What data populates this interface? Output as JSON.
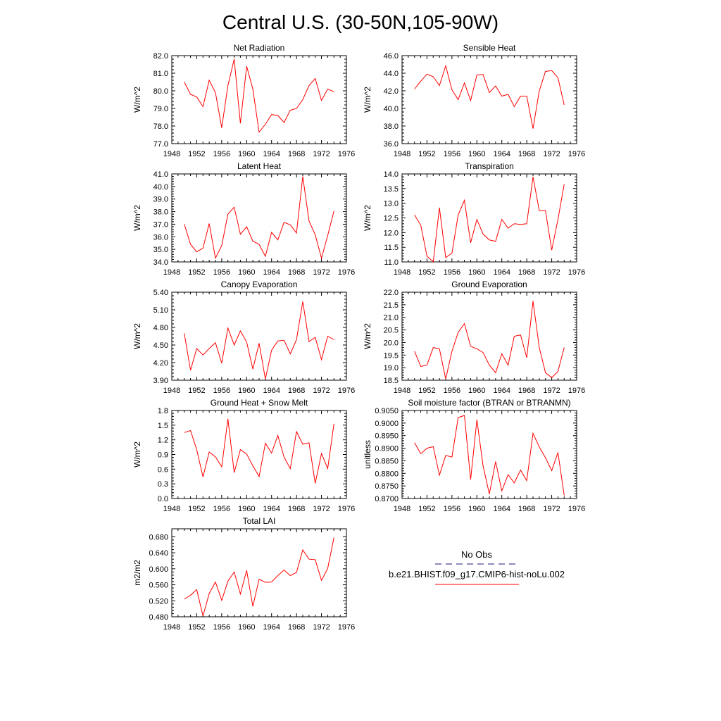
{
  "page_title": "Central U.S. (30-50N,105-90W)",
  "colors": {
    "model_line": "#ff0000",
    "obs_line": "#1a1a7a",
    "axis": "#000000"
  },
  "legend": {
    "obs_label": "No Obs",
    "model_label": "b.e21.BHIST.f09_g17.CMIP6-hist-noLu.002"
  },
  "chart_data": [
    {
      "type": "line",
      "title": "Net Radiation",
      "ylabel": "W/m^2",
      "xlim": [
        1948,
        1976
      ],
      "ylim": [
        77.0,
        82.0
      ],
      "xticks": [
        1948,
        1952,
        1956,
        1960,
        1964,
        1968,
        1972,
        1976
      ],
      "xtick_labels": [
        "1948",
        "1952",
        "1956",
        "1960",
        "1964",
        "1968",
        "1972",
        "1976"
      ],
      "yticks": [
        77.0,
        78.0,
        79.0,
        80.0,
        81.0,
        82.0
      ],
      "ytick_labels": [
        "77.0",
        "78.0",
        "79.0",
        "80.0",
        "81.0",
        "82.0"
      ],
      "series": [
        {
          "x": [
            1950,
            1951,
            1952,
            1953,
            1954,
            1955,
            1956,
            1957,
            1958,
            1959,
            1960,
            1961,
            1962,
            1963,
            1964,
            1965,
            1966,
            1967,
            1968,
            1969,
            1970,
            1971,
            1972,
            1973,
            1974
          ],
          "values": [
            80.5,
            79.8,
            79.65,
            79.1,
            80.6,
            79.9,
            77.9,
            80.3,
            81.8,
            78.15,
            81.4,
            80.1,
            77.65,
            78.1,
            78.65,
            78.6,
            78.2,
            78.9,
            79.0,
            79.5,
            80.3,
            80.7,
            79.45,
            80.1,
            79.95
          ]
        }
      ]
    },
    {
      "type": "line",
      "title": "Sensible Heat",
      "ylabel": "W/m^2",
      "xlim": [
        1948,
        1976
      ],
      "ylim": [
        36.0,
        46.0
      ],
      "xticks": [
        1948,
        1952,
        1956,
        1960,
        1964,
        1968,
        1972,
        1976
      ],
      "xtick_labels": [
        "1948",
        "1952",
        "1956",
        "1960",
        "1964",
        "1968",
        "1972",
        "1976"
      ],
      "yticks": [
        36.0,
        38.0,
        40.0,
        42.0,
        44.0,
        46.0
      ],
      "ytick_labels": [
        "36.0",
        "38.0",
        "40.0",
        "42.0",
        "44.0",
        "46.0"
      ],
      "series": [
        {
          "x": [
            1950,
            1951,
            1952,
            1953,
            1954,
            1955,
            1956,
            1957,
            1958,
            1959,
            1960,
            1961,
            1962,
            1963,
            1964,
            1965,
            1966,
            1967,
            1968,
            1969,
            1970,
            1971,
            1972,
            1973,
            1974
          ],
          "values": [
            42.2,
            43.1,
            43.9,
            43.6,
            42.6,
            44.85,
            42.1,
            41.0,
            42.9,
            40.9,
            43.8,
            43.85,
            41.8,
            42.55,
            41.4,
            41.6,
            40.2,
            41.4,
            41.4,
            37.7,
            42.0,
            44.2,
            44.3,
            43.5,
            40.4
          ]
        }
      ]
    },
    {
      "type": "line",
      "title": "Latent Heat",
      "ylabel": "W/m^2",
      "xlim": [
        1948,
        1976
      ],
      "ylim": [
        34.0,
        41.0
      ],
      "xticks": [
        1948,
        1952,
        1956,
        1960,
        1964,
        1968,
        1972,
        1976
      ],
      "xtick_labels": [
        "1948",
        "1952",
        "1956",
        "1960",
        "1964",
        "1968",
        "1972",
        "1976"
      ],
      "yticks": [
        34.0,
        35.0,
        36.0,
        37.0,
        38.0,
        39.0,
        40.0,
        41.0
      ],
      "ytick_labels": [
        "34.0",
        "35.0",
        "36.0",
        "37.0",
        "38.0",
        "39.0",
        "40.0",
        "41.0"
      ],
      "series": [
        {
          "x": [
            1950,
            1951,
            1952,
            1953,
            1954,
            1955,
            1956,
            1957,
            1958,
            1959,
            1960,
            1961,
            1962,
            1963,
            1964,
            1965,
            1966,
            1967,
            1968,
            1969,
            1970,
            1971,
            1972,
            1973,
            1974
          ],
          "values": [
            37.0,
            35.4,
            34.8,
            35.1,
            37.05,
            34.3,
            35.3,
            37.8,
            38.35,
            36.2,
            36.8,
            35.65,
            35.4,
            34.45,
            36.35,
            35.75,
            37.15,
            36.95,
            36.3,
            40.8,
            37.25,
            36.15,
            34.3,
            36.1,
            38.05
          ]
        }
      ]
    },
    {
      "type": "line",
      "title": "Transpiration",
      "ylabel": "W/m^2",
      "xlim": [
        1948,
        1976
      ],
      "ylim": [
        11.0,
        14.0
      ],
      "xticks": [
        1948,
        1952,
        1956,
        1960,
        1964,
        1968,
        1972,
        1976
      ],
      "xtick_labels": [
        "1948",
        "1952",
        "1956",
        "1960",
        "1964",
        "1968",
        "1972",
        "1976"
      ],
      "yticks": [
        11.0,
        11.5,
        12.0,
        12.5,
        13.0,
        13.5,
        14.0
      ],
      "ytick_labels": [
        "11.0",
        "11.5",
        "12.0",
        "12.5",
        "13.0",
        "13.5",
        "14.0"
      ],
      "series": [
        {
          "x": [
            1950,
            1951,
            1952,
            1953,
            1954,
            1955,
            1956,
            1957,
            1958,
            1959,
            1960,
            1961,
            1962,
            1963,
            1964,
            1965,
            1966,
            1967,
            1968,
            1969,
            1970,
            1971,
            1972,
            1973,
            1974
          ],
          "values": [
            12.6,
            12.25,
            11.2,
            11.0,
            12.85,
            11.15,
            11.3,
            12.6,
            13.1,
            11.65,
            12.45,
            11.95,
            11.75,
            11.7,
            12.45,
            12.15,
            12.3,
            12.28,
            12.3,
            13.9,
            12.75,
            12.75,
            11.4,
            12.45,
            13.65
          ]
        }
      ]
    },
    {
      "type": "line",
      "title": "Canopy Evaporation",
      "ylabel": "W/m^2",
      "xlim": [
        1948,
        1976
      ],
      "ylim": [
        3.9,
        5.4
      ],
      "xticks": [
        1948,
        1952,
        1956,
        1960,
        1964,
        1968,
        1972,
        1976
      ],
      "xtick_labels": [
        "1948",
        "1952",
        "1956",
        "1960",
        "1964",
        "1968",
        "1972",
        "1976"
      ],
      "yticks": [
        3.9,
        4.2,
        4.5,
        4.8,
        5.1,
        5.4
      ],
      "ytick_labels": [
        "3.90",
        "4.20",
        "4.50",
        "4.80",
        "5.10",
        "5.40"
      ],
      "series": [
        {
          "x": [
            1950,
            1951,
            1952,
            1953,
            1954,
            1955,
            1956,
            1957,
            1958,
            1959,
            1960,
            1961,
            1962,
            1963,
            1964,
            1965,
            1966,
            1967,
            1968,
            1969,
            1970,
            1971,
            1972,
            1973,
            1974
          ],
          "values": [
            4.7,
            4.07,
            4.44,
            4.33,
            4.44,
            4.54,
            4.19,
            4.79,
            4.5,
            4.74,
            4.55,
            4.09,
            4.53,
            3.92,
            4.41,
            4.57,
            4.58,
            4.35,
            4.59,
            5.24,
            4.56,
            4.63,
            4.25,
            4.65,
            4.59
          ]
        }
      ]
    },
    {
      "type": "line",
      "title": "Ground Evaporation",
      "ylabel": "W/m^2",
      "xlim": [
        1948,
        1976
      ],
      "ylim": [
        18.5,
        22.0
      ],
      "xticks": [
        1948,
        1952,
        1956,
        1960,
        1964,
        1968,
        1972,
        1976
      ],
      "xtick_labels": [
        "1948",
        "1952",
        "1956",
        "1960",
        "1964",
        "1968",
        "1972",
        "1976"
      ],
      "yticks": [
        18.5,
        19.0,
        19.5,
        20.0,
        20.5,
        21.0,
        21.5,
        22.0
      ],
      "ytick_labels": [
        "18.5",
        "19.0",
        "19.5",
        "20.0",
        "20.5",
        "21.0",
        "21.5",
        "22.0"
      ],
      "series": [
        {
          "x": [
            1950,
            1951,
            1952,
            1953,
            1954,
            1955,
            1956,
            1957,
            1958,
            1959,
            1960,
            1961,
            1962,
            1963,
            1964,
            1965,
            1966,
            1967,
            1968,
            1969,
            1970,
            1971,
            1972,
            1973,
            1974
          ],
          "values": [
            19.65,
            19.05,
            19.1,
            19.8,
            19.75,
            18.55,
            19.65,
            20.4,
            20.75,
            19.85,
            19.75,
            19.6,
            19.1,
            18.8,
            19.55,
            19.1,
            20.25,
            20.3,
            19.4,
            21.65,
            19.8,
            18.8,
            18.6,
            18.85,
            19.8
          ]
        }
      ]
    },
    {
      "type": "line",
      "title": "Ground Heat + Snow Melt",
      "ylabel": "W/m^2",
      "xlim": [
        1948,
        1976
      ],
      "ylim": [
        0.0,
        1.8
      ],
      "xticks": [
        1948,
        1952,
        1956,
        1960,
        1964,
        1968,
        1972,
        1976
      ],
      "xtick_labels": [
        "1948",
        "1952",
        "1956",
        "1960",
        "1964",
        "1968",
        "1972",
        "1976"
      ],
      "yticks": [
        0.0,
        0.3,
        0.6,
        0.9,
        1.2,
        1.5,
        1.8
      ],
      "ytick_labels": [
        "0.0",
        "0.3",
        "0.6",
        "0.9",
        "1.2",
        "1.5",
        "1.8"
      ],
      "series": [
        {
          "x": [
            1950,
            1951,
            1952,
            1953,
            1954,
            1955,
            1956,
            1957,
            1958,
            1959,
            1960,
            1961,
            1962,
            1963,
            1964,
            1965,
            1966,
            1967,
            1968,
            1969,
            1970,
            1971,
            1972,
            1973,
            1974
          ],
          "values": [
            1.35,
            1.39,
            1.0,
            0.44,
            0.95,
            0.85,
            0.65,
            1.63,
            0.53,
            1.0,
            0.91,
            0.67,
            0.45,
            1.13,
            0.93,
            1.29,
            0.85,
            0.61,
            1.37,
            1.11,
            1.14,
            0.31,
            0.92,
            0.61,
            1.53
          ]
        }
      ]
    },
    {
      "type": "line",
      "title": "Soil moisture factor (BTRAN or BTRANMN)",
      "ylabel": "unitless",
      "xlim": [
        1948,
        1976
      ],
      "ylim": [
        0.87,
        0.905
      ],
      "xticks": [
        1948,
        1952,
        1956,
        1960,
        1964,
        1968,
        1972,
        1976
      ],
      "xtick_labels": [
        "1948",
        "1952",
        "1956",
        "1960",
        "1964",
        "1968",
        "1972",
        "1976"
      ],
      "yticks": [
        0.87,
        0.875,
        0.88,
        0.885,
        0.89,
        0.895,
        0.9,
        0.905
      ],
      "ytick_labels": [
        "0.8700",
        "0.8750",
        "0.8800",
        "0.8850",
        "0.8900",
        "0.8950",
        "0.9000",
        "0.9050"
      ],
      "series": [
        {
          "x": [
            1950,
            1951,
            1952,
            1953,
            1954,
            1955,
            1956,
            1957,
            1958,
            1959,
            1960,
            1961,
            1962,
            1963,
            1964,
            1965,
            1966,
            1967,
            1968,
            1969,
            1970,
            1971,
            1972,
            1973,
            1974
          ],
          "values": [
            0.8922,
            0.8878,
            0.89,
            0.8906,
            0.8793,
            0.8871,
            0.8865,
            0.9022,
            0.903,
            0.8775,
            0.9013,
            0.883,
            0.8718,
            0.8847,
            0.873,
            0.8795,
            0.8762,
            0.8813,
            0.8771,
            0.8959,
            0.8905,
            0.8862,
            0.8811,
            0.8883,
            0.8712
          ]
        }
      ]
    },
    {
      "type": "line",
      "title": "Total LAI",
      "ylabel": "m2/m2",
      "xlim": [
        1948,
        1976
      ],
      "ylim": [
        0.48,
        0.7
      ],
      "xticks": [
        1948,
        1952,
        1956,
        1960,
        1964,
        1968,
        1972,
        1976
      ],
      "xtick_labels": [
        "1948",
        "1952",
        "1956",
        "1960",
        "1964",
        "1968",
        "1972",
        "1976"
      ],
      "yticks": [
        0.48,
        0.52,
        0.56,
        0.6,
        0.64,
        0.68
      ],
      "ytick_labels": [
        "0.480",
        "0.520",
        "0.560",
        "0.600",
        "0.640",
        "0.680"
      ],
      "series": [
        {
          "x": [
            1950,
            1951,
            1952,
            1953,
            1954,
            1955,
            1956,
            1957,
            1958,
            1959,
            1960,
            1961,
            1962,
            1963,
            1964,
            1965,
            1966,
            1967,
            1968,
            1969,
            1970,
            1971,
            1972,
            1973,
            1974
          ],
          "values": [
            0.524,
            0.534,
            0.548,
            0.482,
            0.538,
            0.567,
            0.521,
            0.569,
            0.592,
            0.537,
            0.596,
            0.506,
            0.574,
            0.566,
            0.567,
            0.583,
            0.597,
            0.583,
            0.591,
            0.647,
            0.624,
            0.623,
            0.571,
            0.601,
            0.678
          ]
        }
      ]
    }
  ]
}
